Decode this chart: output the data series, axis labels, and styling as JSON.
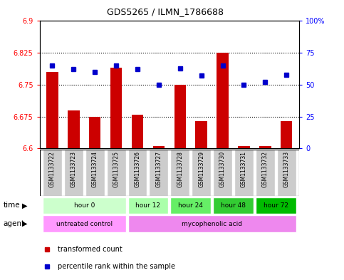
{
  "title": "GDS5265 / ILMN_1786688",
  "samples": [
    "GSM1133722",
    "GSM1133723",
    "GSM1133724",
    "GSM1133725",
    "GSM1133726",
    "GSM1133727",
    "GSM1133728",
    "GSM1133729",
    "GSM1133730",
    "GSM1133731",
    "GSM1133732",
    "GSM1133733"
  ],
  "bar_values": [
    6.78,
    6.69,
    6.675,
    6.79,
    6.68,
    6.605,
    6.75,
    6.665,
    6.825,
    6.605,
    6.605,
    6.665
  ],
  "dot_values": [
    65,
    62,
    60,
    65,
    62,
    50,
    63,
    57,
    65,
    50,
    52,
    58
  ],
  "bar_base": 6.6,
  "ylim_left": [
    6.6,
    6.9
  ],
  "ylim_right": [
    0,
    100
  ],
  "yticks_left": [
    6.6,
    6.675,
    6.75,
    6.825,
    6.9
  ],
  "yticks_right": [
    0,
    25,
    50,
    75,
    100
  ],
  "ytick_labels_left": [
    "6.6",
    "6.675",
    "6.75",
    "6.825",
    "6.9"
  ],
  "ytick_labels_right": [
    "0",
    "25",
    "50",
    "75",
    "100%"
  ],
  "hlines": [
    6.675,
    6.75,
    6.825
  ],
  "bar_color": "#cc0000",
  "dot_color": "#0000cc",
  "bar_width": 0.55,
  "time_groups": [
    {
      "label": "hour 0",
      "start": 0,
      "end": 3,
      "color": "#ccffcc"
    },
    {
      "label": "hour 12",
      "start": 4,
      "end": 5,
      "color": "#aaffaa"
    },
    {
      "label": "hour 24",
      "start": 6,
      "end": 7,
      "color": "#66ee66"
    },
    {
      "label": "hour 48",
      "start": 8,
      "end": 9,
      "color": "#33cc33"
    },
    {
      "label": "hour 72",
      "start": 10,
      "end": 11,
      "color": "#00bb00"
    }
  ],
  "agent_groups": [
    {
      "label": "untreated control",
      "start": 0,
      "end": 3,
      "color": "#ff99ff"
    },
    {
      "label": "mycophenolic acid",
      "start": 4,
      "end": 11,
      "color": "#ee88ee"
    }
  ],
  "legend_bar_label": "transformed count",
  "legend_dot_label": "percentile rank within the sample",
  "xlabel_time": "time",
  "xlabel_agent": "agent",
  "sample_bg": "#cccccc",
  "sample_sep_color": "#ffffff"
}
